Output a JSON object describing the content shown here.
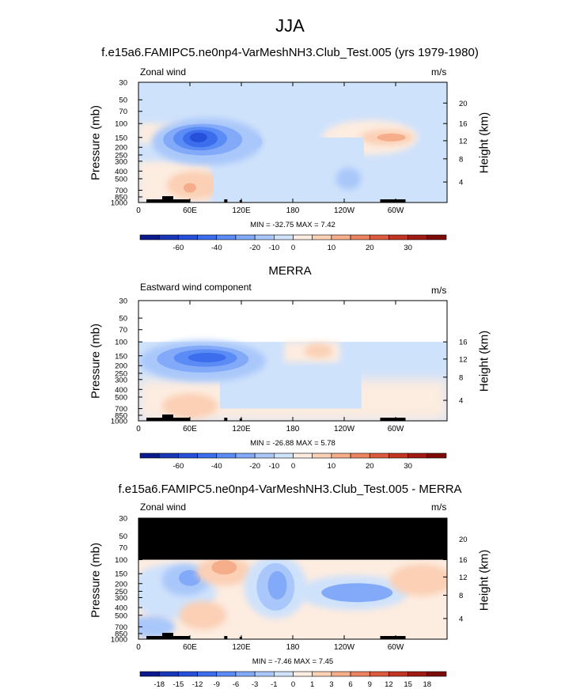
{
  "title": "JJA",
  "colors": {
    "land": "#000000",
    "wind_scale": [
      "#0b1a8e",
      "#1836b5",
      "#2650d9",
      "#3c6ded",
      "#5b8bf5",
      "#82aaf8",
      "#a9c7fa",
      "#cfe2fb",
      "#fdece0",
      "#fbd0b5",
      "#f5ad8a",
      "#ec8461",
      "#dc5a3e",
      "#c23524",
      "#a11a13",
      "#7d0b08"
    ],
    "diff_scale": [
      "#0b1a8e",
      "#1836b5",
      "#2650d9",
      "#3c6ded",
      "#5b8bf5",
      "#82aaf8",
      "#a9c7fa",
      "#cfe2fb",
      "#fdece0",
      "#fbd0b5",
      "#f5ad8a",
      "#ec8461",
      "#dc5a3e",
      "#c23524",
      "#a11a13",
      "#7d0b08"
    ]
  },
  "panels": [
    {
      "title": "f.e15a6.FAMIPC5.ne0np4-VarMeshNH3.Club_Test.005 (yrs 1979-1980)",
      "left_label": "Zonal wind",
      "units": "m/s",
      "ylabel": "Pressure (mb)",
      "ylabel_right": "Height (km)",
      "pressure_ticks": [
        "30",
        "50",
        "70",
        "100",
        "150",
        "200",
        "250",
        "300",
        "400",
        "500",
        "700",
        "850",
        "1000"
      ],
      "height_ticks": [
        "20",
        "16",
        "12",
        "8",
        "4"
      ],
      "x_ticks": [
        "0",
        "60E",
        "120E",
        "180",
        "120W",
        "60W"
      ],
      "min_max": "MIN = -32.75   MAX =  7.42",
      "colorbar_labels": [
        "-60",
        "-40",
        "-20",
        "-10",
        "0",
        "10",
        "20",
        "30"
      ]
    },
    {
      "title": "MERRA",
      "left_label": "Eastward wind component",
      "units": "m/s",
      "ylabel": "Pressure (mb)",
      "ylabel_right": "Height (km)",
      "pressure_ticks": [
        "30",
        "50",
        "70",
        "100",
        "150",
        "200",
        "250",
        "300",
        "400",
        "500",
        "700",
        "850",
        "1000"
      ],
      "height_ticks": [
        "16",
        "12",
        "8",
        "4"
      ],
      "x_ticks": [
        "0",
        "60E",
        "120E",
        "180",
        "120W",
        "60W"
      ],
      "min_max": "MIN = -26.88   MAX =  5.78",
      "colorbar_labels": [
        "-60",
        "-40",
        "-20",
        "-10",
        "0",
        "10",
        "20",
        "30"
      ]
    },
    {
      "title": "f.e15a6.FAMIPC5.ne0np4-VarMeshNH3.Club_Test.005 - MERRA",
      "left_label": "Zonal wind",
      "units": "m/s",
      "ylabel": "Pressure (mb)",
      "ylabel_right": "Height (km)",
      "pressure_ticks": [
        "30",
        "50",
        "70",
        "100",
        "150",
        "200",
        "250",
        "300",
        "400",
        "500",
        "700",
        "850",
        "1000"
      ],
      "height_ticks": [
        "20",
        "16",
        "12",
        "8",
        "4"
      ],
      "x_ticks": [
        "0",
        "60E",
        "120E",
        "180",
        "120W",
        "60W"
      ],
      "min_max": "MIN =  -7.46   MAX =  7.45",
      "colorbar_labels": [
        "-18",
        "-15",
        "-12",
        "-9",
        "-6",
        "-3",
        "-1",
        "0",
        "1",
        "3",
        "6",
        "9",
        "12",
        "15",
        "18"
      ]
    }
  ],
  "chart_data": [
    {
      "type": "heatmap",
      "title": "f.e15a6.FAMIPC5.ne0np4-VarMeshNH3.Club_Test.005 (yrs 1979-1980)",
      "variable": "Zonal wind",
      "units": "m/s",
      "season": "JJA",
      "xlabel": "",
      "ylabel": "Pressure (mb)",
      "x_ticks": [
        "0",
        "60E",
        "120E",
        "180",
        "120W",
        "60W"
      ],
      "y_ticks": [
        30,
        50,
        70,
        100,
        150,
        200,
        250,
        300,
        400,
        500,
        700,
        850,
        1000
      ],
      "y_log_scale": true,
      "ylim": [
        1000,
        30
      ],
      "min": -32.75,
      "max": 7.42,
      "contour_levels": [
        -60,
        -50,
        -40,
        -30,
        -20,
        -15,
        -10,
        -5,
        0,
        5,
        10,
        15,
        20,
        25,
        30
      ],
      "features": [
        {
          "desc": "easterly jet core",
          "lon": 80,
          "pressure": 150,
          "value": -30
        },
        {
          "desc": "westerly maximum",
          "lon": 290,
          "pressure": 150,
          "value": 7
        },
        {
          "desc": "low-level westerlies",
          "lon": 60,
          "pressure": 700,
          "value": 6
        }
      ]
    },
    {
      "type": "heatmap",
      "title": "MERRA",
      "variable": "Eastward wind component",
      "units": "m/s",
      "ylabel": "Pressure (mb)",
      "x_ticks": [
        "0",
        "60E",
        "120E",
        "180",
        "120W",
        "60W"
      ],
      "y_ticks": [
        30,
        50,
        70,
        100,
        150,
        200,
        250,
        300,
        400,
        500,
        700,
        850,
        1000
      ],
      "y_log_scale": true,
      "data_top_pressure": 100,
      "min": -26.88,
      "max": 5.78,
      "contour_levels": [
        -60,
        -50,
        -40,
        -30,
        -20,
        -15,
        -10,
        -5,
        0,
        5,
        10,
        15,
        20,
        25,
        30
      ],
      "features": [
        {
          "desc": "easterly jet core",
          "lon": 80,
          "pressure": 150,
          "value": -25
        },
        {
          "desc": "westerly maximum",
          "lon": 200,
          "pressure": 150,
          "value": 5
        }
      ]
    },
    {
      "type": "heatmap",
      "title": "f.e15a6.FAMIPC5.ne0np4-VarMeshNH3.Club_Test.005 - MERRA",
      "variable": "Zonal wind",
      "units": "m/s",
      "ylabel": "Pressure (mb)",
      "x_ticks": [
        "0",
        "60E",
        "120E",
        "180",
        "120W",
        "60W"
      ],
      "y_ticks": [
        30,
        50,
        70,
        100,
        150,
        200,
        250,
        300,
        400,
        500,
        700,
        850,
        1000
      ],
      "y_log_scale": true,
      "masked_above_pressure": 100,
      "min": -7.46,
      "max": 7.45,
      "contour_levels": [
        -18,
        -15,
        -12,
        -9,
        -6,
        -3,
        -1,
        0,
        1,
        3,
        6,
        9,
        12,
        15,
        18
      ],
      "features": [
        {
          "desc": "negative difference",
          "lon": 55,
          "pressure": 180,
          "value": -6
        },
        {
          "desc": "positive difference",
          "lon": 100,
          "pressure": 120,
          "value": 6
        },
        {
          "desc": "negative difference",
          "lon": 160,
          "pressure": 200,
          "value": -6
        },
        {
          "desc": "negative difference",
          "lon": 250,
          "pressure": 250,
          "value": -5
        }
      ]
    }
  ]
}
